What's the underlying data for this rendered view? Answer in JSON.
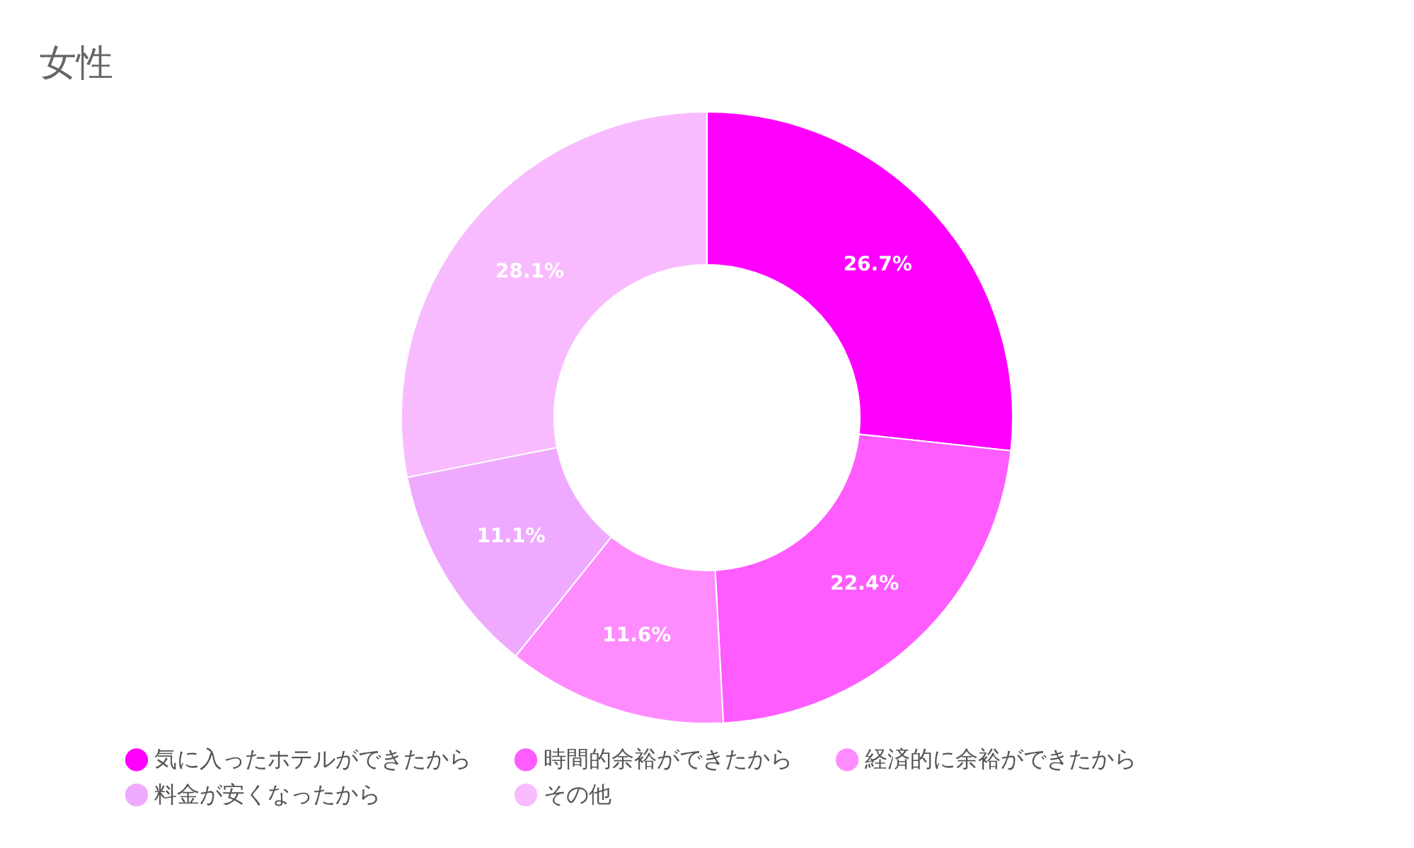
{
  "chart_data": {
    "type": "donut",
    "title": "女性",
    "categories": [
      "気に入ったホテルができたから",
      "時間的余裕ができたから",
      "経済的に余裕ができたから",
      "料金が安くなったから",
      "その他"
    ],
    "values": [
      26.7,
      22.4,
      11.6,
      11.1,
      28.1
    ],
    "value_labels": [
      "26.7%",
      "22.4%",
      "11.6%",
      "11.1%",
      "28.1%"
    ],
    "colors": [
      "#ff00ff",
      "#ff5cff",
      "#ff8cff",
      "#efaaff",
      "#f9bbff"
    ],
    "legend": "bottom"
  }
}
